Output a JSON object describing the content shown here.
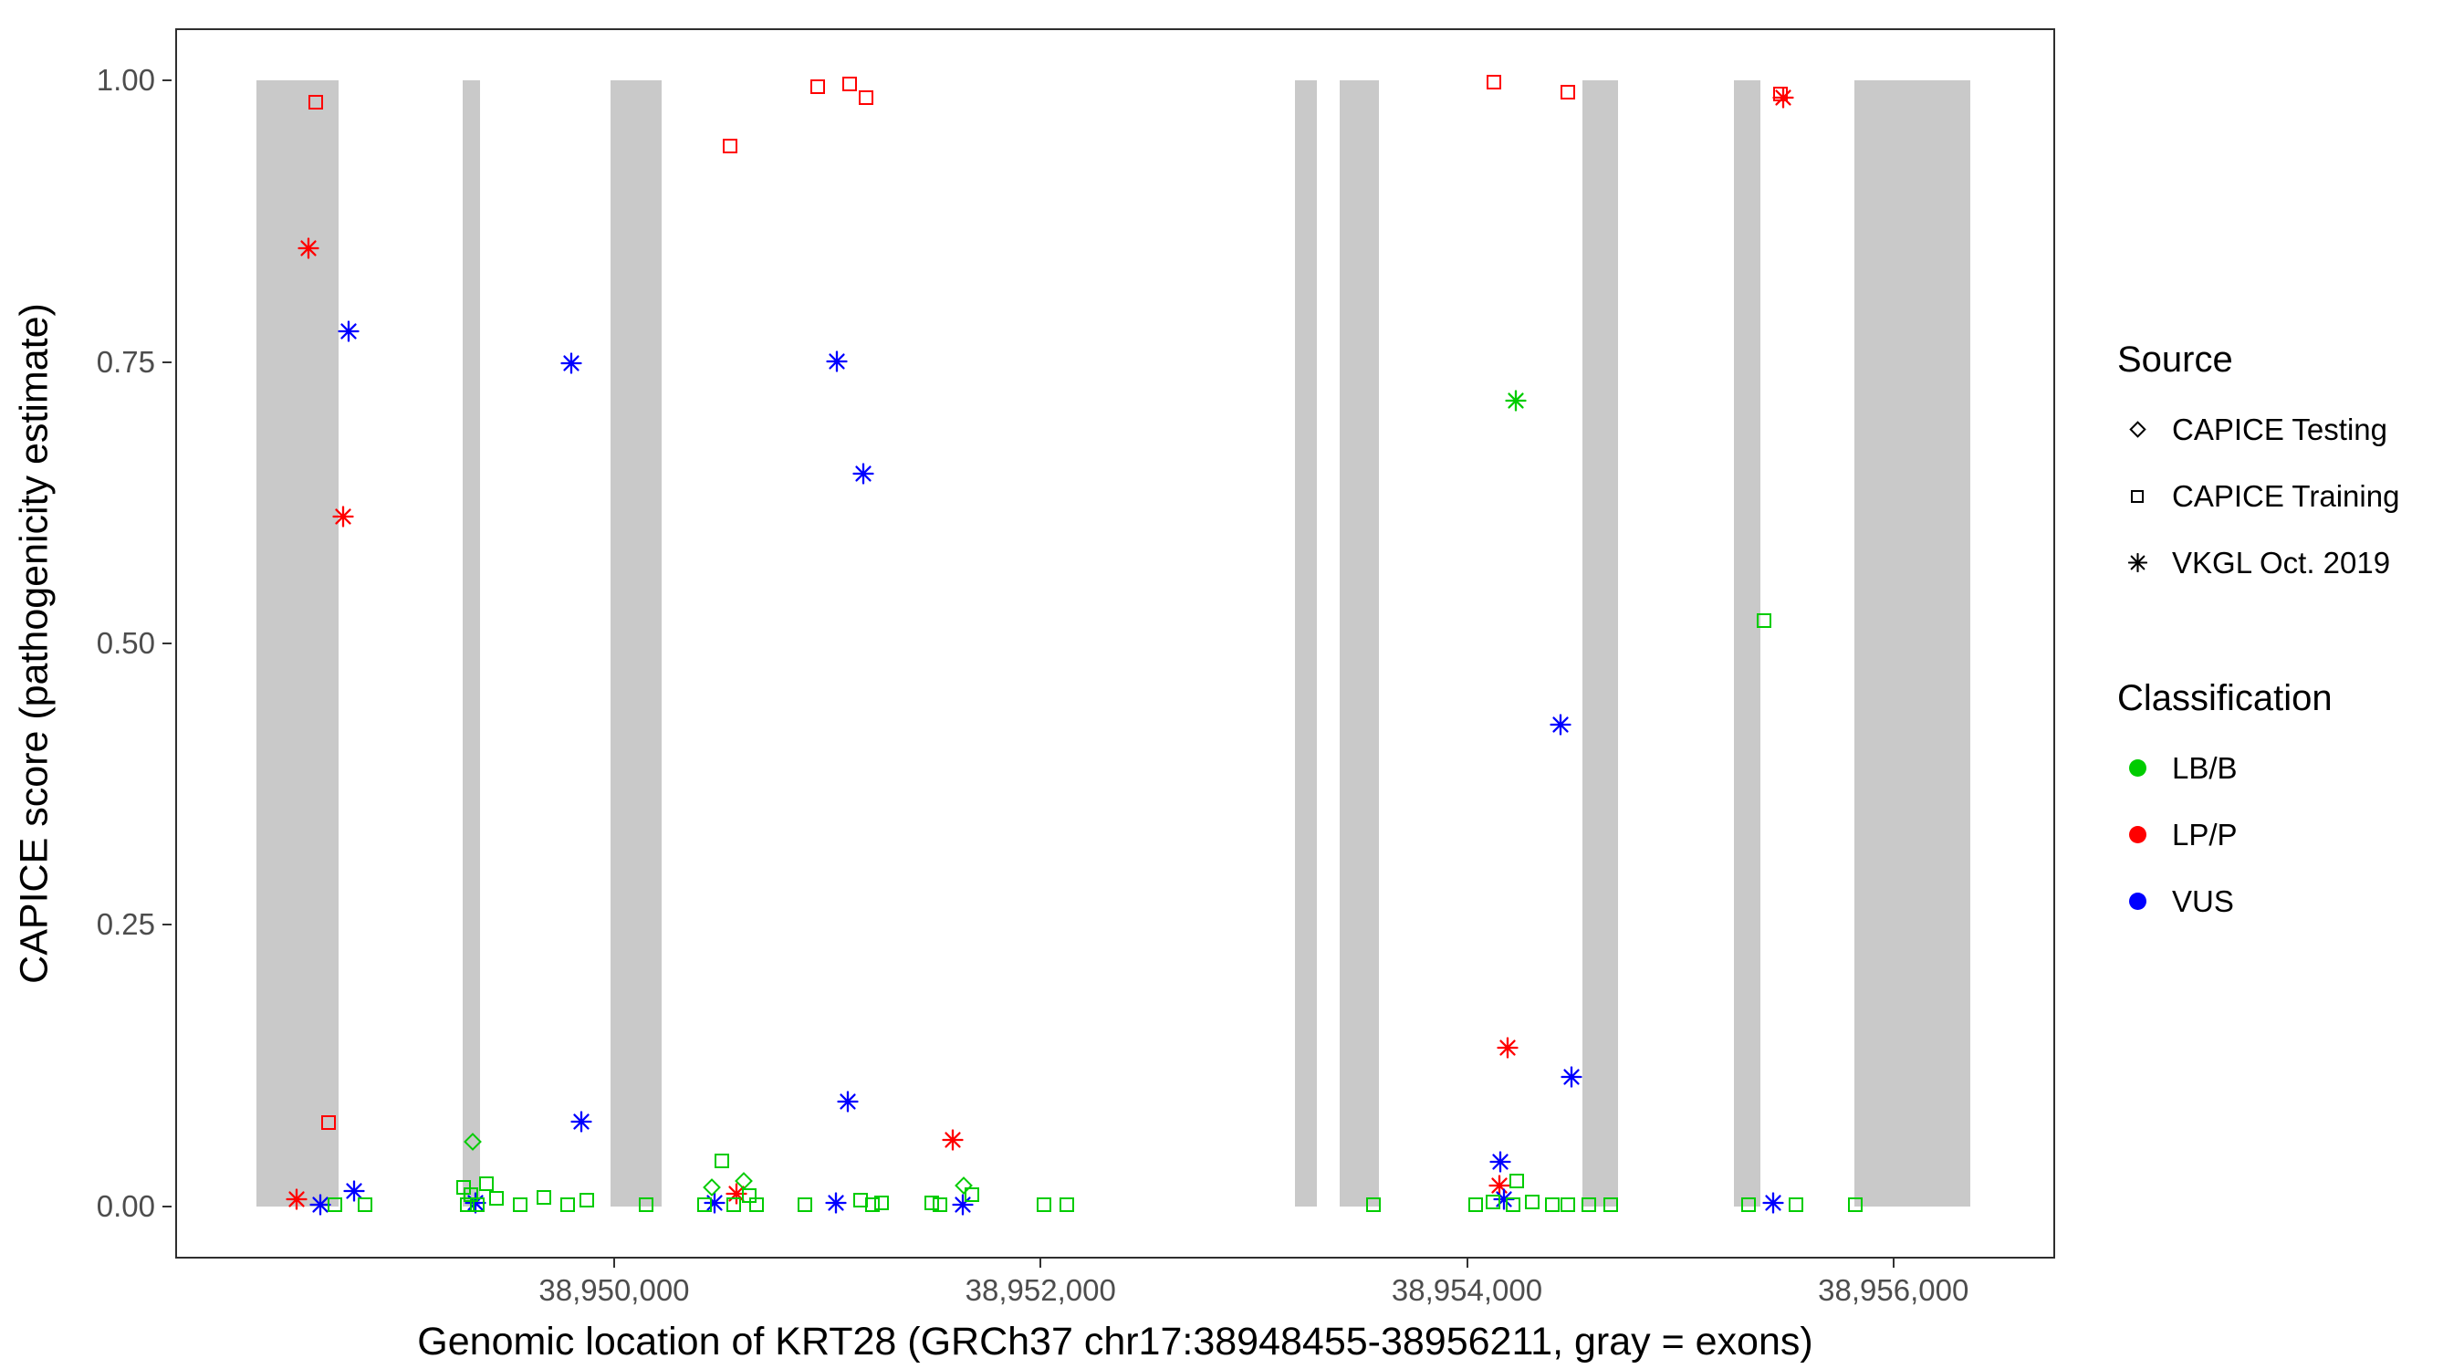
{
  "chart_data": {
    "type": "scatter",
    "title": "",
    "xlabel": "Genomic location of KRT28 (GRCh37 chr17:38948455-38956211, gray = exons)",
    "ylabel": "CAPICE score (pathogenicity estimate)",
    "xlim": [
      38947950,
      38956750
    ],
    "ylim": [
      -0.045,
      1.045
    ],
    "grid": false,
    "legend_position": "right",
    "x_ticks": [
      {
        "value": 38950000,
        "label": "38,950,000"
      },
      {
        "value": 38952000,
        "label": "38,952,000"
      },
      {
        "value": 38954000,
        "label": "38,954,000"
      },
      {
        "value": 38956000,
        "label": "38,956,000"
      }
    ],
    "y_ticks": [
      {
        "value": 0.0,
        "label": "0.00"
      },
      {
        "value": 0.25,
        "label": "0.25"
      },
      {
        "value": 0.5,
        "label": "0.50"
      },
      {
        "value": 0.75,
        "label": "0.75"
      },
      {
        "value": 1.0,
        "label": "1.00"
      }
    ],
    "exon_color": "#c9c9c9",
    "exons": [
      [
        38948321,
        38948709
      ],
      [
        38949291,
        38949373
      ],
      [
        38949985,
        38950224
      ],
      [
        38953193,
        38953297
      ],
      [
        38953401,
        38953588
      ],
      [
        38954543,
        38954707
      ],
      [
        38955252,
        38955378
      ],
      [
        38955819,
        38956360
      ]
    ],
    "colors": {
      "LB/B": "#00cc00",
      "LP/P": "#ff0000",
      "VUS": "#0000ff"
    },
    "source_markers": {
      "testing": "diamond",
      "training": "square",
      "vkgl": "asterisk"
    },
    "points_format": [
      "genomic_position",
      "capice_score",
      "source",
      "classification"
    ],
    "points": [
      [
        38948600,
        0.981,
        "training",
        "LP/P"
      ],
      [
        38948660,
        0.074,
        "training",
        "LP/P"
      ],
      [
        38950545,
        0.942,
        "training",
        "LP/P"
      ],
      [
        38950955,
        0.995,
        "training",
        "LP/P"
      ],
      [
        38951105,
        0.997,
        "training",
        "LP/P"
      ],
      [
        38951180,
        0.985,
        "training",
        "LP/P"
      ],
      [
        38954125,
        0.999,
        "training",
        "LP/P"
      ],
      [
        38954475,
        0.99,
        "training",
        "LP/P"
      ],
      [
        38955470,
        0.988,
        "training",
        "LP/P"
      ],
      [
        38948565,
        0.851,
        "vkgl",
        "LP/P"
      ],
      [
        38948730,
        0.613,
        "vkgl",
        "LP/P"
      ],
      [
        38951590,
        0.059,
        "vkgl",
        "LP/P"
      ],
      [
        38954190,
        0.141,
        "vkgl",
        "LP/P"
      ],
      [
        38950575,
        0.011,
        "vkgl",
        "LP/P"
      ],
      [
        38948510,
        0.006,
        "vkgl",
        "LP/P"
      ],
      [
        38954150,
        0.018,
        "vkgl",
        "LP/P"
      ],
      [
        38955485,
        0.985,
        "vkgl",
        "LP/P"
      ],
      [
        38948755,
        0.777,
        "vkgl",
        "VUS"
      ],
      [
        38949800,
        0.749,
        "vkgl",
        "VUS"
      ],
      [
        38951045,
        0.751,
        "vkgl",
        "VUS"
      ],
      [
        38951170,
        0.651,
        "vkgl",
        "VUS"
      ],
      [
        38954440,
        0.428,
        "vkgl",
        "VUS"
      ],
      [
        38954490,
        0.115,
        "vkgl",
        "VUS"
      ],
      [
        38951095,
        0.093,
        "vkgl",
        "VUS"
      ],
      [
        38949845,
        0.075,
        "vkgl",
        "VUS"
      ],
      [
        38954155,
        0.039,
        "vkgl",
        "VUS"
      ],
      [
        38948780,
        0.013,
        "vkgl",
        "VUS"
      ],
      [
        38948620,
        0.001,
        "vkgl",
        "VUS"
      ],
      [
        38949350,
        0.003,
        "vkgl",
        "VUS"
      ],
      [
        38950470,
        0.003,
        "vkgl",
        "VUS"
      ],
      [
        38951040,
        0.003,
        "vkgl",
        "VUS"
      ],
      [
        38951635,
        0.001,
        "vkgl",
        "VUS"
      ],
      [
        38954175,
        0.006,
        "vkgl",
        "VUS"
      ],
      [
        38955435,
        0.003,
        "vkgl",
        "VUS"
      ],
      [
        38954230,
        0.716,
        "vkgl",
        "LB/B"
      ],
      [
        38949335,
        0.057,
        "testing",
        "LB/B"
      ],
      [
        38950460,
        0.017,
        "testing",
        "LB/B"
      ],
      [
        38950610,
        0.022,
        "testing",
        "LB/B"
      ],
      [
        38951640,
        0.018,
        "testing",
        "LB/B"
      ],
      [
        38955395,
        0.52,
        "training",
        "LB/B"
      ],
      [
        38950505,
        0.04,
        "training",
        "LB/B"
      ],
      [
        38954235,
        0.022,
        "training",
        "LB/B"
      ],
      [
        38948690,
        0.001,
        "training",
        "LB/B"
      ],
      [
        38948830,
        0.001,
        "training",
        "LB/B"
      ],
      [
        38949295,
        0.017,
        "training",
        "LB/B"
      ],
      [
        38949330,
        0.01,
        "training",
        "LB/B"
      ],
      [
        38949360,
        0.001,
        "training",
        "LB/B"
      ],
      [
        38949400,
        0.02,
        "training",
        "LB/B"
      ],
      [
        38949450,
        0.007,
        "training",
        "LB/B"
      ],
      [
        38949310,
        0.001,
        "training",
        "LB/B"
      ],
      [
        38949560,
        0.001,
        "training",
        "LB/B"
      ],
      [
        38949670,
        0.008,
        "training",
        "LB/B"
      ],
      [
        38949780,
        0.001,
        "training",
        "LB/B"
      ],
      [
        38949870,
        0.005,
        "training",
        "LB/B"
      ],
      [
        38950150,
        0.001,
        "training",
        "LB/B"
      ],
      [
        38950425,
        0.001,
        "training",
        "LB/B"
      ],
      [
        38950560,
        0.001,
        "training",
        "LB/B"
      ],
      [
        38950635,
        0.009,
        "training",
        "LB/B"
      ],
      [
        38950670,
        0.001,
        "training",
        "LB/B"
      ],
      [
        38950895,
        0.001,
        "training",
        "LB/B"
      ],
      [
        38951155,
        0.005,
        "training",
        "LB/B"
      ],
      [
        38951210,
        0.001,
        "training",
        "LB/B"
      ],
      [
        38951255,
        0.003,
        "training",
        "LB/B"
      ],
      [
        38951490,
        0.003,
        "training",
        "LB/B"
      ],
      [
        38951530,
        0.001,
        "training",
        "LB/B"
      ],
      [
        38951680,
        0.01,
        "training",
        "LB/B"
      ],
      [
        38952015,
        0.001,
        "training",
        "LB/B"
      ],
      [
        38952125,
        0.001,
        "training",
        "LB/B"
      ],
      [
        38953560,
        0.001,
        "training",
        "LB/B"
      ],
      [
        38954040,
        0.001,
        "training",
        "LB/B"
      ],
      [
        38954120,
        0.004,
        "training",
        "LB/B"
      ],
      [
        38954215,
        0.001,
        "training",
        "LB/B"
      ],
      [
        38954305,
        0.004,
        "training",
        "LB/B"
      ],
      [
        38954400,
        0.001,
        "training",
        "LB/B"
      ],
      [
        38954475,
        0.001,
        "training",
        "LB/B"
      ],
      [
        38954570,
        0.001,
        "training",
        "LB/B"
      ],
      [
        38954675,
        0.001,
        "training",
        "LB/B"
      ],
      [
        38955320,
        0.001,
        "training",
        "LB/B"
      ],
      [
        38955545,
        0.001,
        "training",
        "LB/B"
      ],
      [
        38955820,
        0.001,
        "training",
        "LB/B"
      ]
    ]
  },
  "legend": {
    "source": {
      "title": "Source",
      "items": [
        {
          "label": "CAPICE Testing",
          "marker": "diamond"
        },
        {
          "label": "CAPICE Training",
          "marker": "square"
        },
        {
          "label": "VKGL Oct. 2019",
          "marker": "asterisk"
        }
      ]
    },
    "classification": {
      "title": "Classification",
      "items": [
        {
          "label": "LB/B",
          "color": "#00cc00"
        },
        {
          "label": "LP/P",
          "color": "#ff0000"
        },
        {
          "label": "VUS",
          "color": "#0000ff"
        }
      ]
    }
  }
}
